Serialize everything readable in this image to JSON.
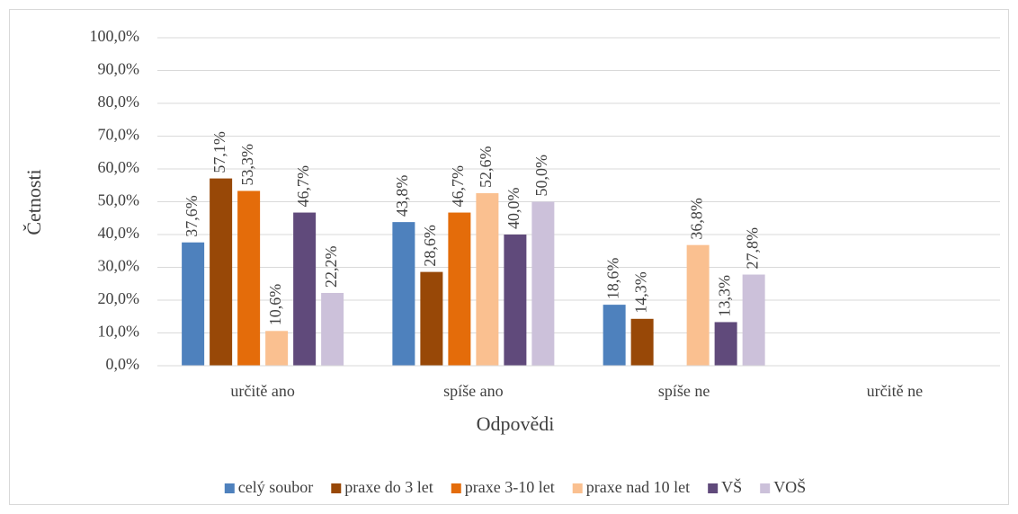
{
  "chart_data": {
    "type": "bar",
    "x_label": "Odpovědi",
    "y_label": "Četnosti",
    "categories": [
      "určitě ano",
      "spíše ano",
      "spíše ne",
      "určitě ne"
    ],
    "series": [
      {
        "name": "celý soubor",
        "color": "#4e81bd",
        "values": [
          37.6,
          43.8,
          18.6,
          null
        ],
        "value_labels": [
          "37,6%",
          "43,8%",
          "18,6%",
          null
        ]
      },
      {
        "name": "praxe do 3 let",
        "color": "#984807",
        "values": [
          57.1,
          28.6,
          14.3,
          null
        ],
        "value_labels": [
          "57,1%",
          "28,6%",
          "14,3%",
          null
        ]
      },
      {
        "name": "praxe 3-10 let",
        "color": "#e46c0a",
        "values": [
          53.3,
          46.7,
          null,
          null
        ],
        "value_labels": [
          "53,3%",
          "46,7%",
          null,
          null
        ]
      },
      {
        "name": "praxe nad 10 let",
        "color": "#fac090",
        "values": [
          10.6,
          52.6,
          36.8,
          null
        ],
        "value_labels": [
          "10,6%",
          "52,6%",
          "36,8%",
          null
        ]
      },
      {
        "name": "VŠ",
        "color": "#604a7b",
        "values": [
          46.7,
          40.0,
          13.3,
          null
        ],
        "value_labels": [
          "46,7%",
          "40,0%",
          "13,3%",
          null
        ]
      },
      {
        "name": "VOŠ",
        "color": "#ccc1da",
        "values": [
          22.2,
          50.0,
          27.8,
          null
        ],
        "value_labels": [
          "22,2%",
          "50,0%",
          "27,8%",
          null
        ]
      }
    ],
    "ylim": [
      0,
      100
    ],
    "yticks": [
      {
        "value": 0,
        "label": "0,0%"
      },
      {
        "value": 10,
        "label": "10,0%"
      },
      {
        "value": 20,
        "label": "20,0%"
      },
      {
        "value": 30,
        "label": "30,0%"
      },
      {
        "value": 40,
        "label": "40,0%"
      },
      {
        "value": 50,
        "label": "50,0%"
      },
      {
        "value": 60,
        "label": "60,0%"
      },
      {
        "value": 70,
        "label": "70,0%"
      },
      {
        "value": 80,
        "label": "80,0%"
      },
      {
        "value": 90,
        "label": "90,0%"
      },
      {
        "value": 100,
        "label": "100,0%"
      }
    ],
    "grid": true,
    "legend": "bottom"
  }
}
